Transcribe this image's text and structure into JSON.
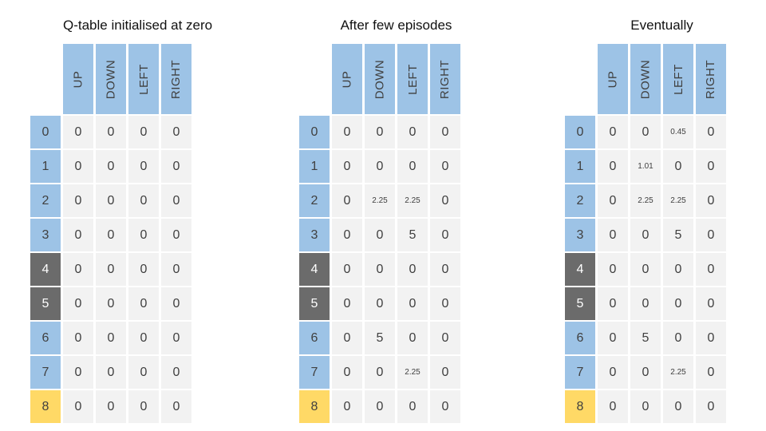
{
  "colors": {
    "page-bg": "#ffffff",
    "blue": "#9dc3e6",
    "dark-gray": "#6b6b6b",
    "gold": "#ffd966",
    "cell-bg": "#f2f2f2",
    "value-text": "#404040",
    "header-text": "#404040",
    "label-dark-text": "#ffffff",
    "title-text": "#111111"
  },
  "row_types": [
    "blue",
    "blue",
    "blue",
    "blue",
    "dark",
    "dark",
    "blue",
    "blue",
    "gold"
  ],
  "chart_data": [
    {
      "type": "table",
      "title": "Q-table initialised at zero",
      "columns": [
        "UP",
        "DOWN",
        "LEFT",
        "RIGHT"
      ],
      "row_labels": [
        "0",
        "1",
        "2",
        "3",
        "4",
        "5",
        "6",
        "7",
        "8"
      ],
      "rows": [
        [
          0,
          0,
          0,
          0
        ],
        [
          0,
          0,
          0,
          0
        ],
        [
          0,
          0,
          0,
          0
        ],
        [
          0,
          0,
          0,
          0
        ],
        [
          0,
          0,
          0,
          0
        ],
        [
          0,
          0,
          0,
          0
        ],
        [
          0,
          0,
          0,
          0
        ],
        [
          0,
          0,
          0,
          0
        ],
        [
          0,
          0,
          0,
          0
        ]
      ]
    },
    {
      "type": "table",
      "title": "After few episodes",
      "columns": [
        "UP",
        "DOWN",
        "LEFT",
        "RIGHT"
      ],
      "row_labels": [
        "0",
        "1",
        "2",
        "3",
        "4",
        "5",
        "6",
        "7",
        "8"
      ],
      "rows": [
        [
          0,
          0,
          0,
          0
        ],
        [
          0,
          0,
          0,
          0
        ],
        [
          0,
          2.25,
          2.25,
          0
        ],
        [
          0,
          0,
          5,
          0
        ],
        [
          0,
          0,
          0,
          0
        ],
        [
          0,
          0,
          0,
          0
        ],
        [
          0,
          5,
          0,
          0
        ],
        [
          0,
          0,
          2.25,
          0
        ],
        [
          0,
          0,
          0,
          0
        ]
      ]
    },
    {
      "type": "table",
      "title": "Eventually",
      "columns": [
        "UP",
        "DOWN",
        "LEFT",
        "RIGHT"
      ],
      "row_labels": [
        "0",
        "1",
        "2",
        "3",
        "4",
        "5",
        "6",
        "7",
        "8"
      ],
      "rows": [
        [
          0,
          0,
          0.45,
          0
        ],
        [
          0,
          1.01,
          0,
          0
        ],
        [
          0,
          2.25,
          2.25,
          0
        ],
        [
          0,
          0,
          5,
          0
        ],
        [
          0,
          0,
          0,
          0
        ],
        [
          0,
          0,
          0,
          0
        ],
        [
          0,
          5,
          0,
          0
        ],
        [
          0,
          0,
          2.25,
          0
        ],
        [
          0,
          0,
          0,
          0
        ]
      ]
    }
  ]
}
